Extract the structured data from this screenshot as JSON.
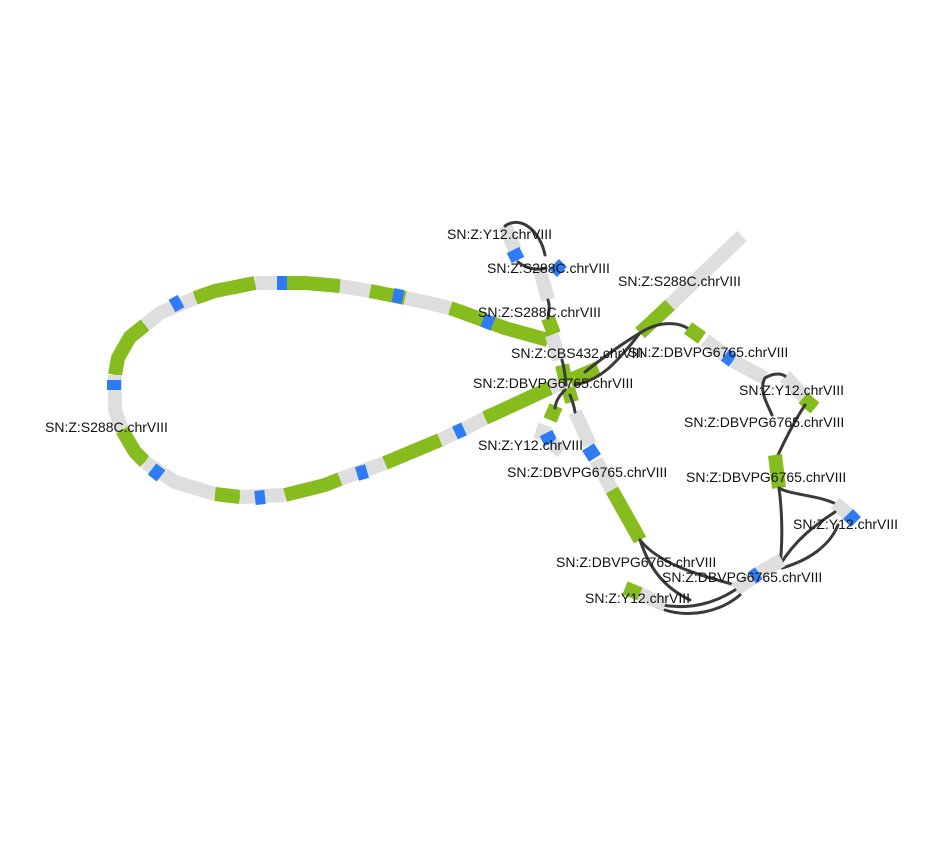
{
  "colors": {
    "grey": "#dedede",
    "green": "#86bc1d",
    "blue": "#2d7cf6",
    "edge": "#3a3a3a",
    "text": "#111111"
  },
  "labels": {
    "big_loop": "SN:Z:S288C.chrVIII",
    "top_y12": "SN:Z:Y12.chrVIII",
    "top_s288c_a": "SN:Z:S288C.chrVIII",
    "top_s288c_b": "SN:Z:S288C.chrVIII",
    "top_right_s288c": "SN:Z:S288C.chrVIII",
    "center_cbs": "SN:Z:CBS432.chrVIII",
    "center_dbvpg_a": "SN:Z:DBVPG6765.chrVIII",
    "center_dbvpg_b": "SN:Z:DBVPG6765.chrVIII",
    "center_y12": "SN:Z:Y12.chrVIII",
    "center_dbvpg_c": "SN:Z:DBVPG6765.chrVIII",
    "right_y12_a": "SN:Z:Y12.chrVIII",
    "right_dbvpg_a": "SN:Z:DBVPG6765.chrVIII",
    "right_dbvpg_b": "SN:Z:DBVPG6765.chrVIII",
    "right_y12_b": "SN:Z:Y12.chrVIII",
    "bottom_dbvpg_a": "SN:Z:DBVPG6765.chrVIII",
    "bottom_dbvpg_b": "SN:Z:DBVPG6765.chrVIII",
    "bottom_y12": "SN:Z:Y12.chrVIII"
  }
}
